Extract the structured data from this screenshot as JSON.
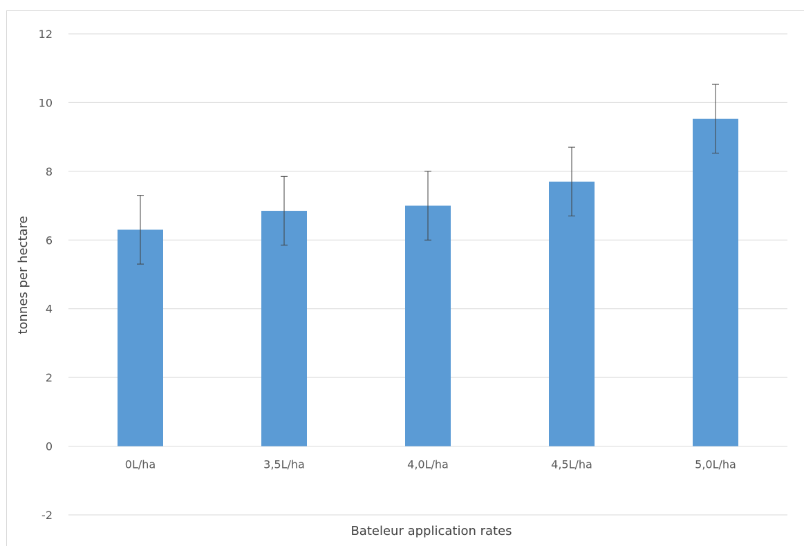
{
  "chart_data": {
    "type": "bar",
    "title": "",
    "xlabel": "Bateleur application rates",
    "ylabel": "tonnes per hectare",
    "categories": [
      "0L/ha",
      "3,5L/ha",
      "4,0L/ha",
      "4,5L/ha",
      "5,0L/ha"
    ],
    "series": [
      {
        "values": [
          6.3,
          6.85,
          7.0,
          7.7,
          9.53
        ],
        "error_plus": [
          1.0,
          1.0,
          1.0,
          1.0,
          1.0
        ],
        "error_minus": [
          1.0,
          1.0,
          1.0,
          1.0,
          1.0
        ],
        "color": "#5b9bd5"
      }
    ],
    "ylim": [
      -2,
      12
    ],
    "yticks": [
      -2,
      0,
      2,
      4,
      6,
      8,
      10,
      12
    ],
    "ytick_labels": [
      "-2",
      "0",
      "2",
      "4",
      "6",
      "8",
      "10",
      "12"
    ],
    "grid": true,
    "legend": "none"
  },
  "colors": {
    "bar": "#5b9bd5",
    "grid": "#d9d9d9",
    "error_bar": "#404040",
    "text": "#595959"
  }
}
